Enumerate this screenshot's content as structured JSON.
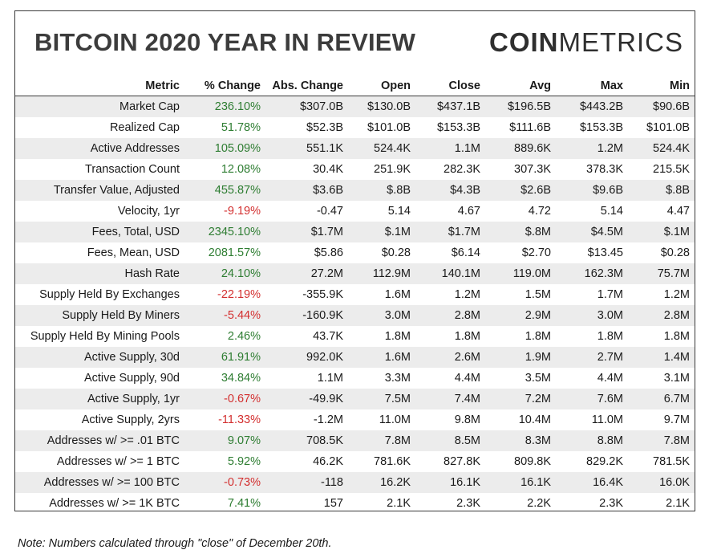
{
  "title": "BITCOIN 2020 YEAR IN REVIEW",
  "logo": {
    "bold": "COIN",
    "light": "METRICS"
  },
  "colors": {
    "positive": "#2e7d32",
    "negative": "#d32f2f",
    "stripe": "#ececec"
  },
  "columns": [
    "Metric",
    "% Change",
    "Abs. Change",
    "Open",
    "Close",
    "Avg",
    "Max",
    "Min"
  ],
  "rows": [
    [
      "Market Cap",
      "236.10%",
      "$307.0B",
      "$130.0B",
      "$437.1B",
      "$196.5B",
      "$443.2B",
      "$90.6B"
    ],
    [
      "Realized Cap",
      "51.78%",
      "$52.3B",
      "$101.0B",
      "$153.3B",
      "$111.6B",
      "$153.3B",
      "$101.0B"
    ],
    [
      "Active Addresses",
      "105.09%",
      "551.1K",
      "524.4K",
      "1.1M",
      "889.6K",
      "1.2M",
      "524.4K"
    ],
    [
      "Transaction Count",
      "12.08%",
      "30.4K",
      "251.9K",
      "282.3K",
      "307.3K",
      "378.3K",
      "215.5K"
    ],
    [
      "Transfer Value, Adjusted",
      "455.87%",
      "$3.6B",
      "$.8B",
      "$4.3B",
      "$2.6B",
      "$9.6B",
      "$.8B"
    ],
    [
      "Velocity, 1yr",
      "-9.19%",
      "-0.47",
      "5.14",
      "4.67",
      "4.72",
      "5.14",
      "4.47"
    ],
    [
      "Fees, Total, USD",
      "2345.10%",
      "$1.7M",
      "$.1M",
      "$1.7M",
      "$.8M",
      "$4.5M",
      "$.1M"
    ],
    [
      "Fees, Mean, USD",
      "2081.57%",
      "$5.86",
      "$0.28",
      "$6.14",
      "$2.70",
      "$13.45",
      "$0.28"
    ],
    [
      "Hash Rate",
      "24.10%",
      "27.2M",
      "112.9M",
      "140.1M",
      "119.0M",
      "162.3M",
      "75.7M"
    ],
    [
      "Supply Held By Exchanges",
      "-22.19%",
      "-355.9K",
      "1.6M",
      "1.2M",
      "1.5M",
      "1.7M",
      "1.2M"
    ],
    [
      "Supply Held By Miners",
      "-5.44%",
      "-160.9K",
      "3.0M",
      "2.8M",
      "2.9M",
      "3.0M",
      "2.8M"
    ],
    [
      "Supply Held By Mining Pools",
      "2.46%",
      "43.7K",
      "1.8M",
      "1.8M",
      "1.8M",
      "1.8M",
      "1.8M"
    ],
    [
      "Active Supply, 30d",
      "61.91%",
      "992.0K",
      "1.6M",
      "2.6M",
      "1.9M",
      "2.7M",
      "1.4M"
    ],
    [
      "Active Supply, 90d",
      "34.84%",
      "1.1M",
      "3.3M",
      "4.4M",
      "3.5M",
      "4.4M",
      "3.1M"
    ],
    [
      "Active Supply, 1yr",
      "-0.67%",
      "-49.9K",
      "7.5M",
      "7.4M",
      "7.2M",
      "7.6M",
      "6.7M"
    ],
    [
      "Active Supply, 2yrs",
      "-11.33%",
      "-1.2M",
      "11.0M",
      "9.8M",
      "10.4M",
      "11.0M",
      "9.7M"
    ],
    [
      "Addresses w/ >= .01 BTC",
      "9.07%",
      "708.5K",
      "7.8M",
      "8.5M",
      "8.3M",
      "8.8M",
      "7.8M"
    ],
    [
      "Addresses w/ >= 1 BTC",
      "5.92%",
      "46.2K",
      "781.6K",
      "827.8K",
      "809.8K",
      "829.2K",
      "781.5K"
    ],
    [
      "Addresses w/ >= 100 BTC",
      "-0.73%",
      "-118",
      "16.2K",
      "16.1K",
      "16.1K",
      "16.4K",
      "16.0K"
    ],
    [
      "Addresses w/ >= 1K BTC",
      "7.41%",
      "157",
      "2.1K",
      "2.3K",
      "2.2K",
      "2.3K",
      "2.1K"
    ]
  ],
  "note": "Note: Numbers calculated through \"close\" of December 20th."
}
